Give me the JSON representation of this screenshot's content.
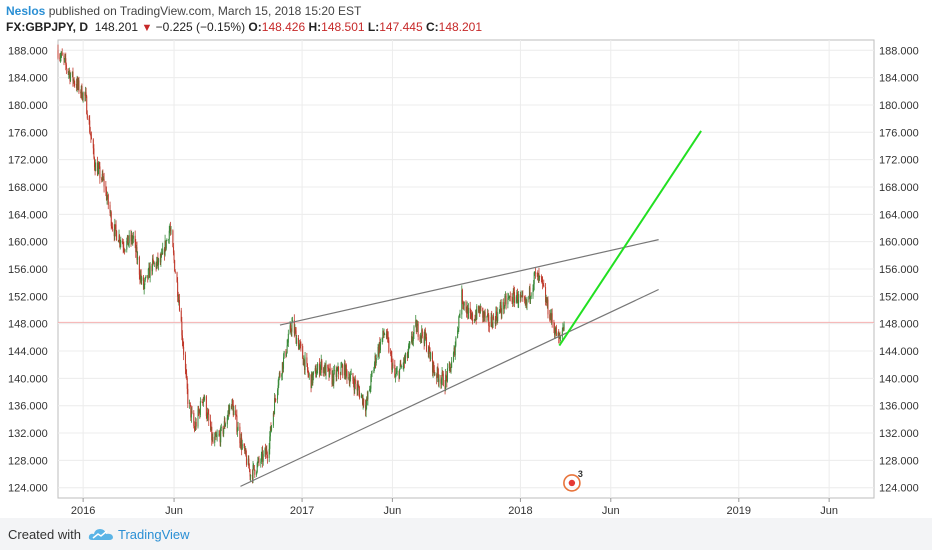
{
  "header": {
    "author": "Neslos",
    "published_text": "published on TradingView.com, March 15, 2018 15:20 EST",
    "symbol": "FX:GBPJPY, D",
    "price": "148.201",
    "change": "−0.225 (−0.15%)",
    "open_label": "O:",
    "open": "148.426",
    "high_label": "H:",
    "high": "148.501",
    "low_label": "L:",
    "low": "147.445",
    "close_label": "C:",
    "close": "148.201"
  },
  "footer": {
    "created_with": "Created with",
    "brand": "TradingView"
  },
  "badge": {
    "count": "3"
  },
  "colors": {
    "up": "#3a8a3a",
    "down": "#c0392b",
    "trendline": "#777777",
    "projection": "#22e022",
    "price_line": "#f4b0b0",
    "grid": "#ececec"
  },
  "chart_data": {
    "type": "candlestick",
    "title": "FX:GBPJPY, D",
    "ylim": [
      122.5,
      189.5
    ],
    "y_ticks": [
      "188.000",
      "184.000",
      "180.000",
      "176.000",
      "172.000",
      "168.000",
      "164.000",
      "160.000",
      "156.000",
      "152.000",
      "148.000",
      "144.000",
      "140.000",
      "136.000",
      "132.000",
      "128.000",
      "124.000"
    ],
    "x_ticks": [
      {
        "label": "2016",
        "date": "2016-01-01"
      },
      {
        "label": "Jun",
        "date": "2016-06-01"
      },
      {
        "label": "2017",
        "date": "2017-01-01"
      },
      {
        "label": "Jun",
        "date": "2017-06-01"
      },
      {
        "label": "2018",
        "date": "2018-01-01"
      },
      {
        "label": "Jun",
        "date": "2018-06-01"
      },
      {
        "label": "2019",
        "date": "2019-01-01"
      },
      {
        "label": "Jun",
        "date": "2019-06-01"
      }
    ],
    "xlim": [
      "2015-11-20",
      "2019-08-15"
    ],
    "last_price": 148.201,
    "price_path": [
      [
        "2015-11-20",
        188.0
      ],
      [
        "2015-12-10",
        184.5
      ],
      [
        "2016-01-05",
        181.0
      ],
      [
        "2016-01-20",
        171.5
      ],
      [
        "2016-02-05",
        168.5
      ],
      [
        "2016-02-20",
        162.0
      ],
      [
        "2016-03-10",
        159.5
      ],
      [
        "2016-03-25",
        160.5
      ],
      [
        "2016-04-10",
        153.0
      ],
      [
        "2016-04-25",
        156.5
      ],
      [
        "2016-05-10",
        157.0
      ],
      [
        "2016-05-25",
        162.0
      ],
      [
        "2016-06-10",
        151.0
      ],
      [
        "2016-06-24",
        137.0
      ],
      [
        "2016-07-05",
        132.5
      ],
      [
        "2016-07-20",
        137.5
      ],
      [
        "2016-08-05",
        130.5
      ],
      [
        "2016-08-20",
        132.0
      ],
      [
        "2016-09-05",
        136.5
      ],
      [
        "2016-09-20",
        131.0
      ],
      [
        "2016-10-07",
        126.0
      ],
      [
        "2016-10-20",
        127.5
      ],
      [
        "2016-11-05",
        129.5
      ],
      [
        "2016-11-20",
        139.0
      ],
      [
        "2016-12-05",
        144.0
      ],
      [
        "2016-12-15",
        148.0
      ],
      [
        "2016-12-30",
        144.0
      ],
      [
        "2017-01-15",
        139.5
      ],
      [
        "2017-02-01",
        142.0
      ],
      [
        "2017-02-20",
        140.0
      ],
      [
        "2017-03-10",
        141.5
      ],
      [
        "2017-04-01",
        139.0
      ],
      [
        "2017-04-18",
        136.0
      ],
      [
        "2017-05-05",
        143.5
      ],
      [
        "2017-05-20",
        147.0
      ],
      [
        "2017-06-05",
        140.0
      ],
      [
        "2017-06-25",
        143.0
      ],
      [
        "2017-07-10",
        147.5
      ],
      [
        "2017-07-25",
        146.0
      ],
      [
        "2017-08-10",
        141.0
      ],
      [
        "2017-08-28",
        139.5
      ],
      [
        "2017-09-10",
        142.5
      ],
      [
        "2017-09-25",
        152.0
      ],
      [
        "2017-10-10",
        148.5
      ],
      [
        "2017-10-25",
        150.0
      ],
      [
        "2017-11-10",
        148.0
      ],
      [
        "2017-11-25",
        149.5
      ],
      [
        "2017-12-10",
        151.5
      ],
      [
        "2017-12-25",
        152.0
      ],
      [
        "2018-01-10",
        150.5
      ],
      [
        "2018-01-25",
        155.0
      ],
      [
        "2018-02-05",
        154.0
      ],
      [
        "2018-02-15",
        150.5
      ],
      [
        "2018-02-28",
        147.0
      ],
      [
        "2018-03-07",
        145.5
      ],
      [
        "2018-03-15",
        148.2
      ]
    ],
    "trendlines": [
      {
        "name": "upper",
        "start": [
          "2016-11-25",
          147.8
        ],
        "end": [
          "2018-08-20",
          160.3
        ]
      },
      {
        "name": "lower",
        "start": [
          "2016-09-20",
          124.2
        ],
        "end": [
          "2018-08-20",
          153.0
        ]
      },
      {
        "name": "projection",
        "start": [
          "2018-03-07",
          144.8
        ],
        "end": [
          "2018-10-30",
          176.2
        ]
      }
    ]
  }
}
